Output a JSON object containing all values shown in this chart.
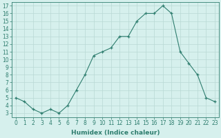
{
  "x": [
    0,
    1,
    2,
    3,
    4,
    5,
    6,
    7,
    8,
    9,
    10,
    11,
    12,
    13,
    14,
    15,
    16,
    17,
    18,
    19,
    20,
    21,
    22,
    23
  ],
  "y": [
    5,
    4.5,
    3.5,
    3,
    3.5,
    3,
    4,
    6,
    8,
    10.5,
    11,
    11.5,
    13,
    13,
    15,
    16,
    16,
    17,
    16,
    11,
    9.5,
    8,
    5,
    4.5
  ],
  "line_color": "#2e7d6e",
  "marker": "+",
  "bg_color": "#d6f0ed",
  "grid_color": "#b8d8d4",
  "xlabel": "Humidex (Indice chaleur)",
  "ylim": [
    2.5,
    17.5
  ],
  "xlim": [
    -0.5,
    23.5
  ],
  "yticks": [
    3,
    4,
    5,
    6,
    7,
    8,
    9,
    10,
    11,
    12,
    13,
    14,
    15,
    16,
    17
  ],
  "xticks": [
    0,
    1,
    2,
    3,
    4,
    5,
    6,
    7,
    8,
    9,
    10,
    11,
    12,
    13,
    14,
    15,
    16,
    17,
    18,
    19,
    20,
    21,
    22,
    23
  ],
  "tick_fontsize": 5.5,
  "xlabel_fontsize": 6.5
}
